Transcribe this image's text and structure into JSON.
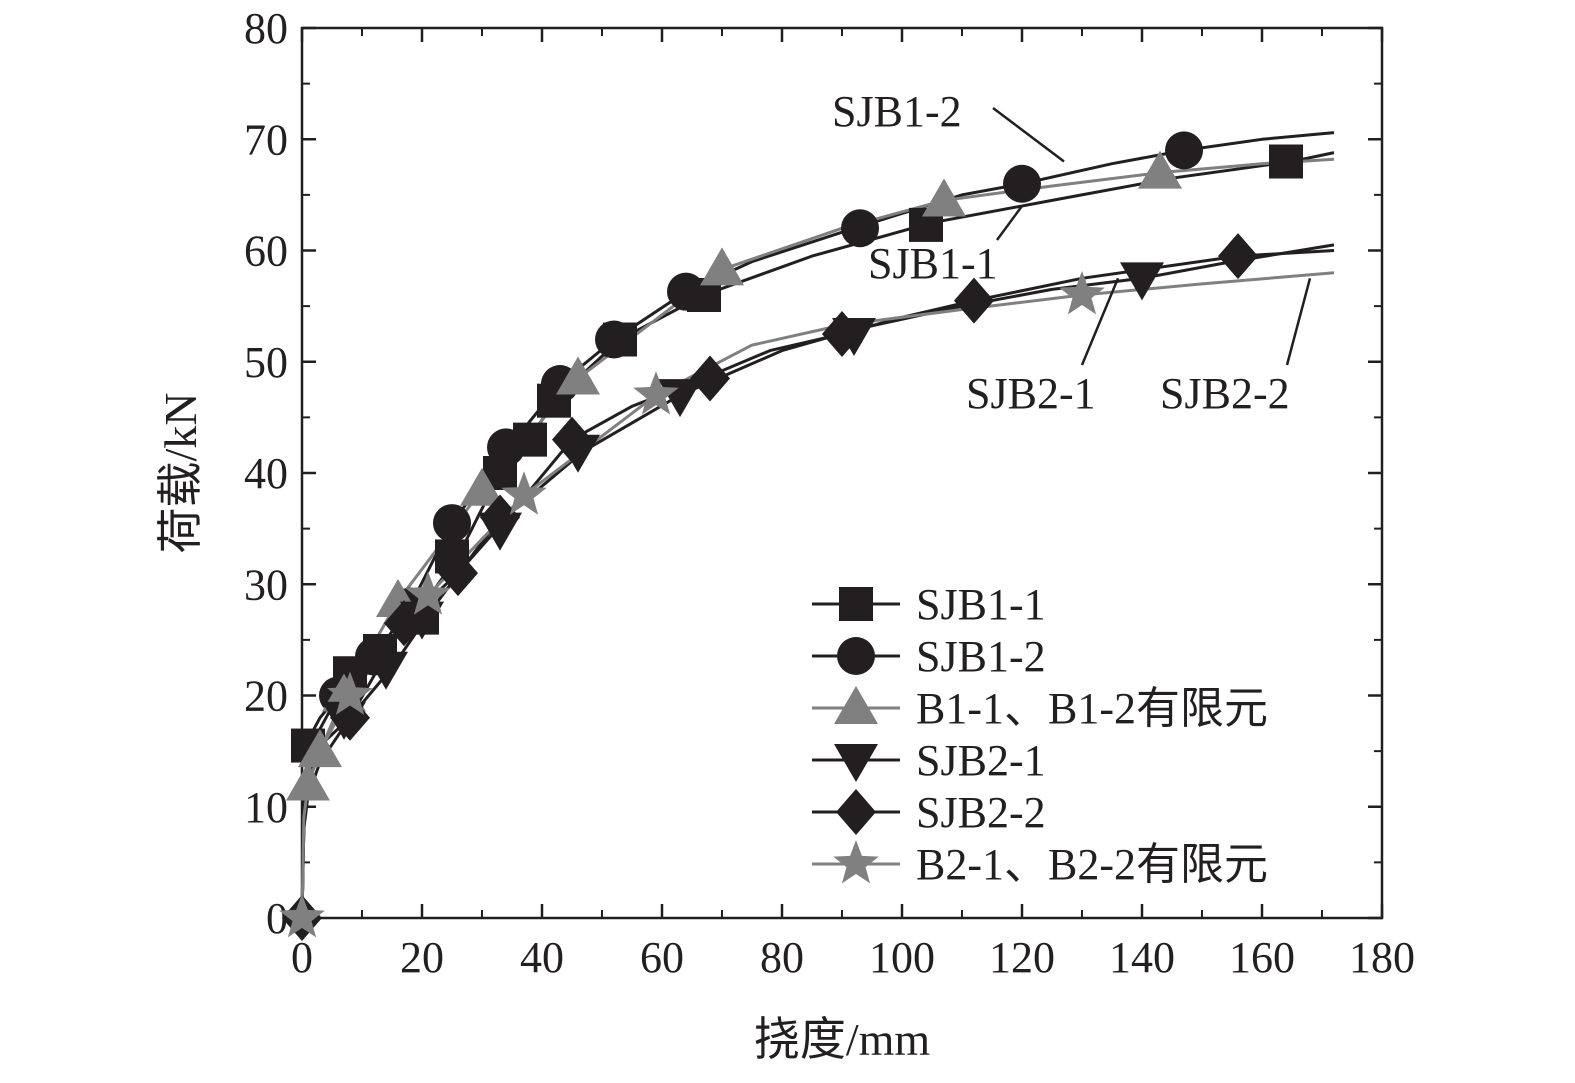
{
  "chart_data": {
    "type": "line",
    "xlabel": "挠度/mm",
    "ylabel": "荷载/kN",
    "xlim": [
      0,
      180
    ],
    "ylim": [
      0,
      80
    ],
    "xticks": [
      0,
      20,
      40,
      60,
      80,
      100,
      120,
      140,
      160,
      180
    ],
    "yticks": [
      0,
      10,
      20,
      30,
      40,
      50,
      60,
      70,
      80
    ],
    "grid": false,
    "legend_position": "lower-right",
    "series": [
      {
        "name": "SJB1-1",
        "color": "#231f20",
        "marker": "square",
        "x": [
          0,
          0.3,
          1,
          2,
          4,
          8,
          13,
          20,
          26,
          33,
          38,
          42,
          53,
          67,
          85,
          105,
          125,
          145,
          165,
          172
        ],
        "y": [
          0,
          8,
          15,
          16,
          18,
          22,
          24,
          28,
          32.5,
          40,
          43,
          46.5,
          52,
          56,
          59.5,
          62.5,
          64.5,
          66.5,
          68,
          68.8
        ]
      },
      {
        "name": "SJB1-2",
        "color": "#231f20",
        "marker": "circle",
        "x": [
          0,
          0.3,
          1,
          3,
          6,
          12,
          18,
          25,
          34,
          43,
          52,
          64,
          75,
          92,
          110,
          120,
          135,
          147,
          160,
          172
        ],
        "y": [
          0,
          10,
          16,
          18,
          20,
          23.5,
          28,
          35.5,
          42,
          48,
          52,
          56.3,
          59,
          62,
          65,
          66,
          67.8,
          69,
          70,
          70.6
        ]
      },
      {
        "name": "B1-1、B1-2有限元",
        "color": "#808080",
        "marker": "triangle-up",
        "x": [
          0,
          0.3,
          1,
          3,
          7,
          16,
          30,
          46,
          70,
          90,
          107,
          125,
          143,
          160,
          172
        ],
        "y": [
          0,
          8,
          12,
          15,
          20,
          28.5,
          38.5,
          48.5,
          58.3,
          62,
          64.5,
          65.8,
          67,
          67.8,
          68.2
        ]
      },
      {
        "name": "SJB2-1",
        "color": "#231f20",
        "marker": "triangle-down",
        "x": [
          0,
          0.3,
          1,
          2,
          4,
          8,
          15,
          22,
          31,
          36,
          47,
          63,
          80,
          93,
          110,
          125,
          140,
          155,
          172
        ],
        "y": [
          0,
          8,
          12,
          14,
          16,
          18,
          22.5,
          28,
          34.5,
          37,
          42,
          47,
          51,
          53,
          55,
          56.5,
          57.5,
          59,
          60.5
        ]
      },
      {
        "name": "SJB2-2",
        "color": "#231f20",
        "marker": "diamond",
        "x": [
          0,
          0.3,
          1,
          3,
          8,
          17,
          26,
          35,
          45,
          55,
          67,
          78,
          90,
          100,
          112,
          130,
          156,
          172
        ],
        "y": [
          0,
          8,
          11,
          14,
          18,
          26.5,
          31,
          36.5,
          43,
          46,
          48.5,
          51,
          52.5,
          54,
          55.5,
          57.5,
          59.5,
          60
        ]
      },
      {
        "name": "B2-1、B2-2有限元",
        "color": "#808080",
        "marker": "star",
        "x": [
          0,
          0.3,
          1,
          3,
          8,
          21,
          37,
          59,
          75,
          90,
          110,
          130,
          150,
          172
        ],
        "y": [
          0,
          9,
          12,
          15,
          20,
          29,
          38,
          47,
          51.5,
          53.3,
          54.7,
          56,
          57,
          58
        ]
      }
    ],
    "markers": [
      {
        "series": 0,
        "x": [
          1,
          8,
          13,
          20,
          25,
          33,
          38,
          42,
          53,
          67,
          104,
          164
        ],
        "y": [
          15.5,
          22,
          24,
          27,
          32.5,
          40,
          43,
          46.5,
          52,
          56,
          62.3,
          68
        ]
      },
      {
        "series": 1,
        "x": [
          6,
          12,
          18,
          25,
          34,
          43,
          52,
          64,
          93,
          120,
          147
        ],
        "y": [
          20,
          23.5,
          28,
          35.5,
          42.3,
          48,
          52,
          56.3,
          62,
          66,
          69
        ]
      },
      {
        "series": 2,
        "x": [
          1,
          3,
          7,
          16,
          30,
          46,
          70,
          107,
          143
        ],
        "y": [
          12,
          15,
          20,
          28.5,
          38.5,
          48.5,
          58.3,
          64.5,
          67
        ]
      },
      {
        "series": 3,
        "x": [
          7,
          14,
          20,
          33,
          46,
          63,
          92,
          140
        ],
        "y": [
          18,
          22.5,
          27,
          35,
          42,
          47,
          52.5,
          57.5
        ]
      },
      {
        "series": 4,
        "x": [
          0,
          8,
          17,
          26,
          33,
          45,
          68,
          90,
          112,
          156
        ],
        "y": [
          0,
          18,
          26.5,
          31,
          36,
          43,
          48.5,
          52.5,
          55.5,
          59.5
        ]
      },
      {
        "series": 5,
        "x": [
          0,
          8,
          21,
          37,
          59,
          130
        ],
        "y": [
          0,
          20,
          29,
          38,
          47,
          56
        ]
      }
    ],
    "annotations": [
      {
        "text": "SJB1-2",
        "target_x": 127,
        "target_y": 68
      },
      {
        "text": "SJB1-1",
        "target_x": 120,
        "target_y": 64
      },
      {
        "text": "SJB2-1",
        "target_x": 136,
        "target_y": 57.5
      },
      {
        "text": "SJB2-2",
        "target_x": 168,
        "target_y": 57.5
      }
    ]
  }
}
